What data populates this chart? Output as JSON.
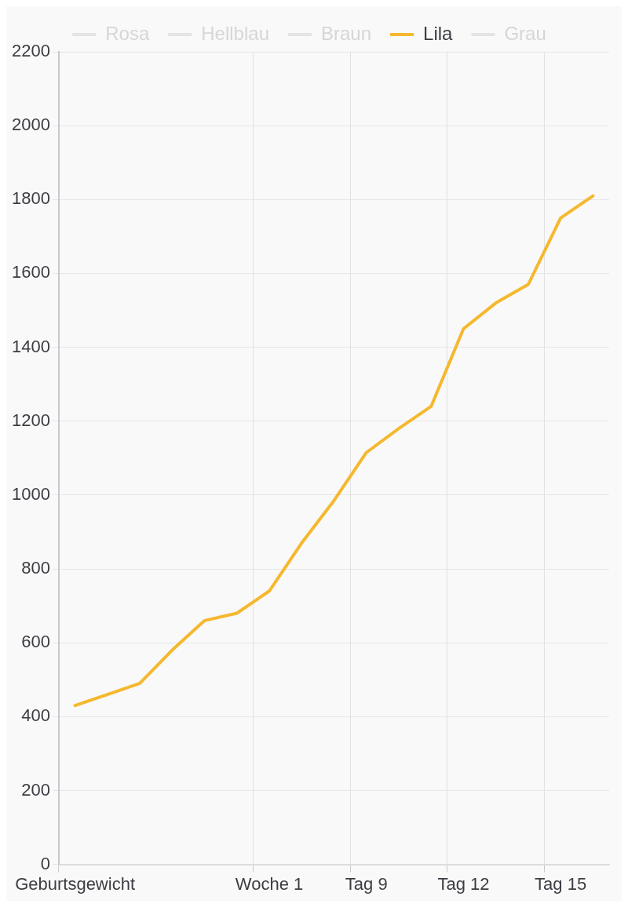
{
  "chart_data": {
    "type": "line",
    "categories": [
      "Geburtsgewicht",
      null,
      null,
      null,
      null,
      null,
      "Woche 1",
      null,
      null,
      "Tag 9",
      null,
      null,
      "Tag 12",
      null,
      null,
      "Tag 15",
      null
    ],
    "series": [
      {
        "name": "Rosa",
        "color": "#e4e4e6",
        "values": [
          null,
          null,
          null,
          null,
          null,
          null,
          null,
          null,
          null,
          null,
          null,
          null,
          null,
          null,
          null,
          null,
          null
        ]
      },
      {
        "name": "Hellblau",
        "color": "#e4e4e6",
        "values": [
          null,
          null,
          null,
          null,
          null,
          null,
          null,
          null,
          null,
          null,
          null,
          null,
          null,
          null,
          null,
          null,
          null
        ]
      },
      {
        "name": "Braun",
        "color": "#e4e4e6",
        "values": [
          null,
          null,
          null,
          null,
          null,
          null,
          null,
          null,
          null,
          null,
          null,
          null,
          null,
          null,
          null,
          null,
          null
        ]
      },
      {
        "name": "Lila",
        "color": "#f5b82e",
        "values": [
          430,
          460,
          490,
          580,
          660,
          680,
          740,
          870,
          985,
          1115,
          1180,
          1240,
          1450,
          1520,
          1570,
          1750,
          1810
        ]
      },
      {
        "name": "Grau",
        "color": "#e4e4e6",
        "values": [
          null,
          null,
          null,
          null,
          null,
          null,
          null,
          null,
          null,
          null,
          null,
          null,
          null,
          null,
          null,
          null,
          null
        ]
      }
    ],
    "ylim": [
      0,
      2200
    ],
    "yticks": [
      0,
      200,
      400,
      600,
      800,
      1000,
      1200,
      1400,
      1600,
      1800,
      2000,
      2200
    ],
    "grid": true,
    "legend": "top",
    "marker": "none",
    "line_style": "solid"
  }
}
